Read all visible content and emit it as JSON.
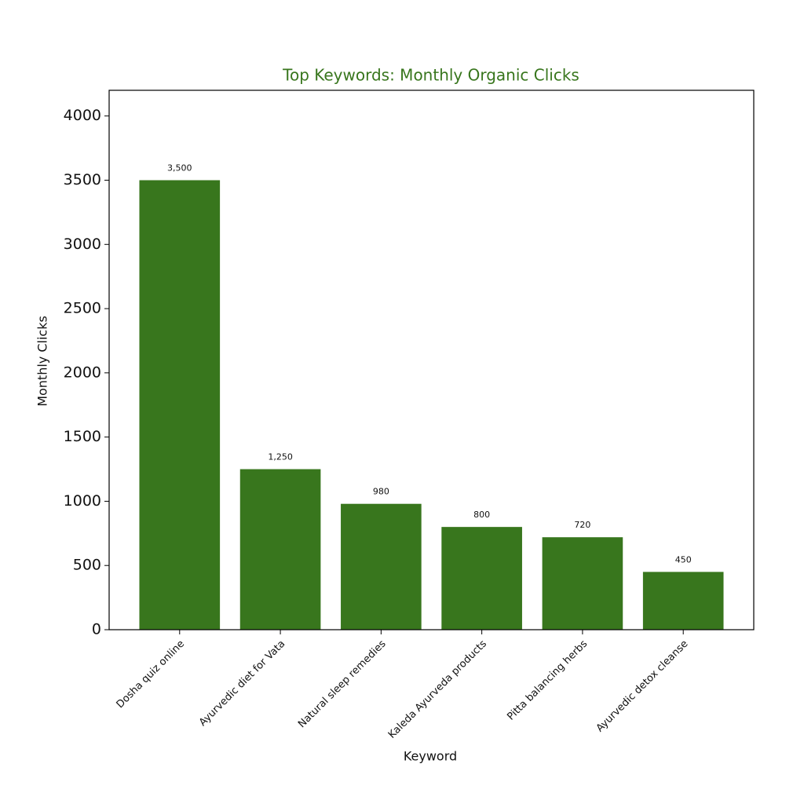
{
  "chart_data": {
    "type": "bar",
    "title": "Top Keywords: Monthly Organic Clicks",
    "title_color": "#38761d",
    "x_label": "Keyword",
    "y_label": "Monthly Clicks",
    "categories": [
      "Dosha quiz online",
      "Ayurvedic diet for Vata",
      "Natural sleep remedies",
      "Kaleda Ayurveda products",
      "Pitta balancing herbs",
      "Ayurvedic detox cleanse"
    ],
    "values": [
      3500,
      1250,
      980,
      800,
      720,
      450
    ],
    "value_labels": [
      "3,500",
      "1,250",
      "980",
      "800",
      "720",
      "450"
    ],
    "color": "#38761d",
    "ylim": [
      0,
      4200
    ],
    "yticks": [
      0,
      500,
      1000,
      1500,
      2000,
      2500,
      3000,
      3500,
      4000
    ]
  }
}
